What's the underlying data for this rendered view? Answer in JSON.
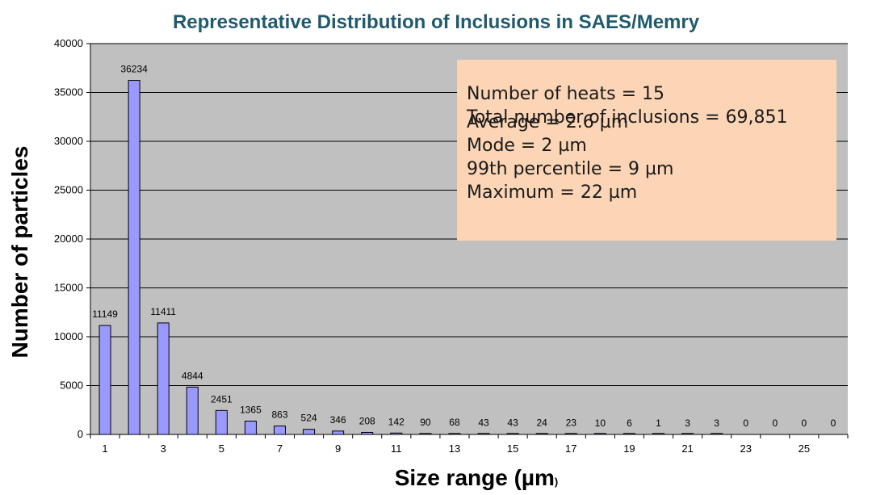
{
  "chart_data": {
    "type": "bar",
    "title": "Representative Distribution of Inclusions in SAES/Memry",
    "xlabel": "Size range (µm",
    "xlabel_suffix": ")",
    "ylabel": "Number of particles",
    "categories": [
      1,
      2,
      3,
      4,
      5,
      6,
      7,
      8,
      9,
      10,
      11,
      12,
      13,
      14,
      15,
      16,
      17,
      18,
      19,
      20,
      21,
      22,
      23,
      24,
      25,
      26
    ],
    "values": [
      11149,
      36234,
      11411,
      4844,
      2451,
      1365,
      863,
      524,
      346,
      208,
      142,
      90,
      68,
      43,
      43,
      24,
      23,
      10,
      6,
      1,
      3,
      3,
      0,
      0,
      0,
      0
    ],
    "x_tick_labels": [
      "1",
      "3",
      "5",
      "7",
      "9",
      "11",
      "13",
      "15",
      "17",
      "19",
      "21",
      "23",
      "25"
    ],
    "y_ticks": [
      0,
      5000,
      10000,
      15000,
      20000,
      25000,
      30000,
      35000,
      40000
    ],
    "ylim": [
      0,
      40000
    ],
    "grid": true,
    "bar_color": "#9999ff",
    "plot_background": "#c0c0c0",
    "data_labels": true
  },
  "stats_box": {
    "lines": [
      "Number of heats = 15",
      "Total number of inclusions  =  69,851",
      "Average = 2.6 µm",
      "Mode = 2 µm",
      "99th percentile =  9 µm",
      "Maximum =  22 µm"
    ],
    "background": "#fbd5b5"
  }
}
